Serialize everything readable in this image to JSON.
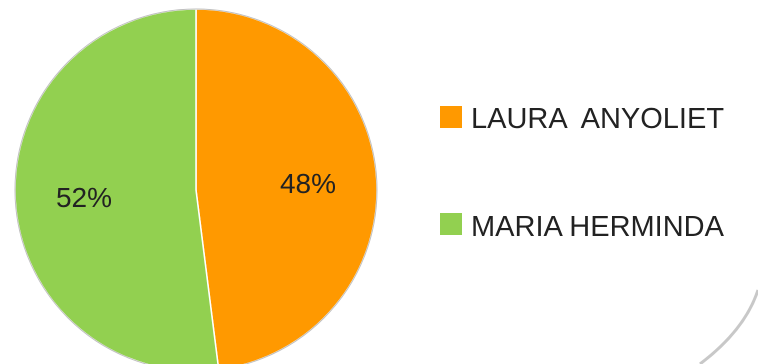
{
  "chart_data": {
    "type": "pie",
    "categories": [
      "LAURA  ANYOLIET",
      "MARIA HERMINDA"
    ],
    "values": [
      48,
      52
    ],
    "labels": [
      "48%",
      "52%"
    ],
    "colors": [
      "#FF9900",
      "#92D050"
    ],
    "legend_position": "right"
  }
}
